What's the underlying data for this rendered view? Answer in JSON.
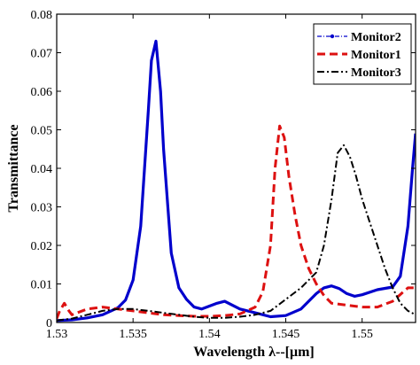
{
  "chart_data": {
    "type": "line",
    "xlabel": "Wavelength λ--[μm]",
    "ylabel": "Transmittance",
    "xlim": [
      1.53,
      1.5535
    ],
    "ylim": [
      0,
      0.08
    ],
    "x_ticks": [
      "1.53",
      "1.535",
      "1.54",
      "1.545",
      "1.55"
    ],
    "x_tick_values": [
      1.53,
      1.535,
      1.54,
      1.545,
      1.55
    ],
    "y_ticks": [
      "0",
      "0.01",
      "0.02",
      "0.03",
      "0.04",
      "0.05",
      "0.06",
      "0.07",
      "0.08"
    ],
    "y_tick_values": [
      0,
      0.01,
      0.02,
      0.03,
      0.04,
      0.05,
      0.06,
      0.07,
      0.08
    ],
    "grid": false,
    "legend_position": "top-right",
    "series": [
      {
        "name": "Monitor2",
        "color": "#0000cc",
        "style": "dash-dot-markers",
        "x": [
          1.53,
          1.531,
          1.532,
          1.533,
          1.534,
          1.5345,
          1.535,
          1.5355,
          1.536,
          1.5362,
          1.5365,
          1.5368,
          1.537,
          1.5375,
          1.538,
          1.5385,
          1.539,
          1.5395,
          1.5405,
          1.541,
          1.542,
          1.543,
          1.544,
          1.545,
          1.546,
          1.547,
          1.5475,
          1.548,
          1.5485,
          1.549,
          1.5495,
          1.55,
          1.551,
          1.552,
          1.5525,
          1.553,
          1.5533,
          1.5535
        ],
        "y": [
          0.0005,
          0.0007,
          0.0012,
          0.002,
          0.0038,
          0.0058,
          0.011,
          0.025,
          0.055,
          0.068,
          0.073,
          0.06,
          0.045,
          0.018,
          0.009,
          0.006,
          0.004,
          0.0035,
          0.005,
          0.0055,
          0.0035,
          0.0025,
          0.0015,
          0.0018,
          0.0035,
          0.0075,
          0.009,
          0.0095,
          0.0088,
          0.0075,
          0.0068,
          0.0072,
          0.0085,
          0.0092,
          0.012,
          0.025,
          0.04,
          0.049
        ]
      },
      {
        "name": "Monitor1",
        "color": "#dd1111",
        "style": "dashed",
        "x": [
          1.53,
          1.5302,
          1.5305,
          1.5308,
          1.531,
          1.532,
          1.533,
          1.534,
          1.535,
          1.536,
          1.537,
          1.538,
          1.539,
          1.54,
          1.541,
          1.542,
          1.543,
          1.5435,
          1.544,
          1.5443,
          1.5446,
          1.5449,
          1.5452,
          1.5456,
          1.546,
          1.5465,
          1.547,
          1.5475,
          1.548,
          1.549,
          1.55,
          1.551,
          1.552,
          1.553,
          1.5535
        ],
        "y": [
          0.001,
          0.003,
          0.005,
          0.003,
          0.002,
          0.0035,
          0.004,
          0.0035,
          0.003,
          0.0025,
          0.002,
          0.0018,
          0.0016,
          0.0016,
          0.0018,
          0.0022,
          0.004,
          0.008,
          0.02,
          0.04,
          0.051,
          0.048,
          0.038,
          0.028,
          0.02,
          0.014,
          0.01,
          0.007,
          0.005,
          0.0045,
          0.004,
          0.004,
          0.0055,
          0.009,
          0.009
        ]
      },
      {
        "name": "Monitor3",
        "color": "#000000",
        "style": "dash-dot",
        "x": [
          1.53,
          1.531,
          1.532,
          1.533,
          1.534,
          1.535,
          1.536,
          1.537,
          1.538,
          1.539,
          1.54,
          1.541,
          1.542,
          1.543,
          1.544,
          1.545,
          1.546,
          1.547,
          1.5475,
          1.548,
          1.5484,
          1.5488,
          1.5492,
          1.5496,
          1.55,
          1.5505,
          1.551,
          1.5515,
          1.552,
          1.5525,
          1.553,
          1.5535
        ],
        "y": [
          0.0005,
          0.001,
          0.002,
          0.003,
          0.0035,
          0.0035,
          0.003,
          0.0025,
          0.002,
          0.0015,
          0.0012,
          0.0012,
          0.0015,
          0.002,
          0.003,
          0.006,
          0.009,
          0.013,
          0.02,
          0.032,
          0.044,
          0.046,
          0.043,
          0.038,
          0.032,
          0.026,
          0.02,
          0.014,
          0.009,
          0.005,
          0.003,
          0.002
        ]
      }
    ]
  }
}
